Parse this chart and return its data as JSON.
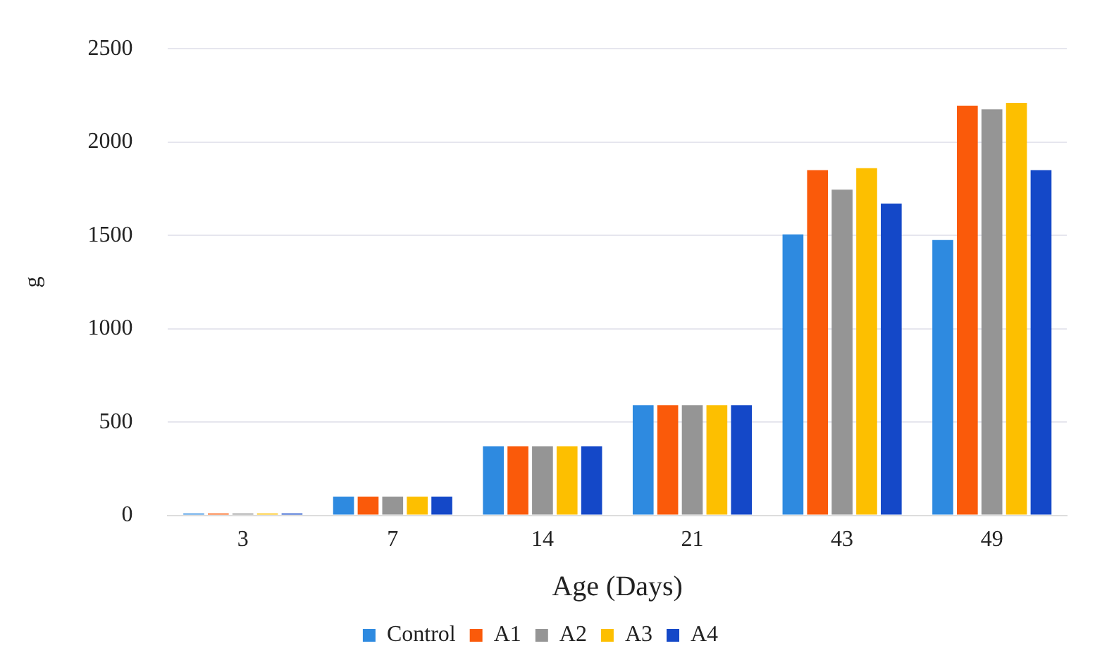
{
  "chart_data": {
    "type": "bar",
    "xlabel": "Age (Days)",
    "ylabel": "g",
    "categories": [
      "3",
      "7",
      "14",
      "21",
      "43",
      "49"
    ],
    "series": [
      {
        "name": "Control",
        "color": "#2e8ae0",
        "values": [
          10,
          100,
          370,
          590,
          1505,
          1475
        ]
      },
      {
        "name": "A1",
        "color": "#fa5a0a",
        "values": [
          10,
          100,
          370,
          590,
          1850,
          2195
        ]
      },
      {
        "name": "A2",
        "color": "#959595",
        "values": [
          10,
          100,
          370,
          590,
          1745,
          2175
        ]
      },
      {
        "name": "A3",
        "color": "#fdbf00",
        "values": [
          10,
          100,
          370,
          590,
          1860,
          2210
        ]
      },
      {
        "name": "A4",
        "color": "#1448c8",
        "values": [
          10,
          100,
          370,
          590,
          1670,
          1850
        ]
      }
    ],
    "ylim": [
      0,
      2500
    ],
    "yticks": [
      0,
      500,
      1000,
      1500,
      2000,
      2500
    ],
    "grid": "y",
    "legend": "bottom"
  }
}
